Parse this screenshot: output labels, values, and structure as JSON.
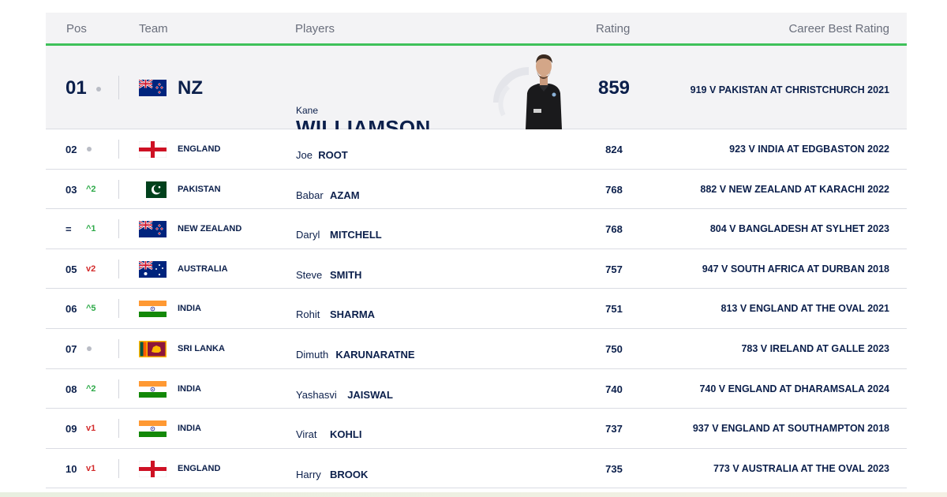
{
  "header": {
    "pos": "Pos",
    "team": "Team",
    "players": "Players",
    "rating": "Rating",
    "best": "Career Best Rating"
  },
  "colors": {
    "accent_green": "#3fc15a",
    "up": "#2eaa49",
    "down": "#d32b2b",
    "navy": "#0b1f4b"
  },
  "rows": [
    {
      "pos": "01",
      "move_type": "dot",
      "move": "",
      "flag": "nz-flag-icon",
      "team": "NZ",
      "first": "Kane",
      "last": "WILLIAMSON",
      "rating": "859",
      "best": "919 V PAKISTAN AT CHRISTCHURCH 2021"
    },
    {
      "pos": "02",
      "move_type": "dot",
      "move": "",
      "flag": "england-flag-icon",
      "team": "ENGLAND",
      "first": "Joe",
      "last": "ROOT",
      "rating": "824",
      "best": "923 V INDIA AT EDGBASTON 2022"
    },
    {
      "pos": "03",
      "move_type": "up",
      "move": "^2",
      "flag": "pakistan-flag-icon",
      "team": "PAKISTAN",
      "first": "Babar",
      "last": "AZAM",
      "rating": "768",
      "best": "882 V NEW ZEALAND AT KARACHI 2022"
    },
    {
      "pos": "=",
      "move_type": "up",
      "move": "^1",
      "flag": "nz-flag-icon",
      "team": "NEW ZEALAND",
      "first": "Daryl",
      "last": "MITCHELL",
      "rating": "768",
      "best": "804 V BANGLADESH AT SYLHET 2023"
    },
    {
      "pos": "05",
      "move_type": "down",
      "move": "v2",
      "flag": "australia-flag-icon",
      "team": "AUSTRALIA",
      "first": "Steve",
      "last": "SMITH",
      "rating": "757",
      "best": "947 V SOUTH AFRICA AT DURBAN 2018"
    },
    {
      "pos": "06",
      "move_type": "up",
      "move": "^5",
      "flag": "india-flag-icon",
      "team": "INDIA",
      "first": "Rohit",
      "last": "SHARMA",
      "rating": "751",
      "best": "813 V ENGLAND AT THE OVAL 2021"
    },
    {
      "pos": "07",
      "move_type": "dot",
      "move": "",
      "flag": "srilanka-flag-icon",
      "team": "SRI LANKA",
      "first": "Dimuth",
      "last": "KARUNARATNE",
      "rating": "750",
      "best": "783 V IRELAND AT GALLE 2023"
    },
    {
      "pos": "08",
      "move_type": "up",
      "move": "^2",
      "flag": "india-flag-icon",
      "team": "INDIA",
      "first": "Yashasvi",
      "last": "JAISWAL",
      "rating": "740",
      "best": "740 V ENGLAND AT DHARAMSALA 2024"
    },
    {
      "pos": "09",
      "move_type": "down",
      "move": "v1",
      "flag": "india-flag-icon",
      "team": "INDIA",
      "first": "Virat",
      "last": "KOHLI",
      "rating": "737",
      "best": "937 V ENGLAND AT SOUTHAMPTON 2018"
    },
    {
      "pos": "10",
      "move_type": "down",
      "move": "v1",
      "flag": "england-flag-icon",
      "team": "ENGLAND",
      "first": "Harry",
      "last": "BROOK",
      "rating": "735",
      "best": "773 V AUSTRALIA AT THE OVAL 2023"
    }
  ]
}
